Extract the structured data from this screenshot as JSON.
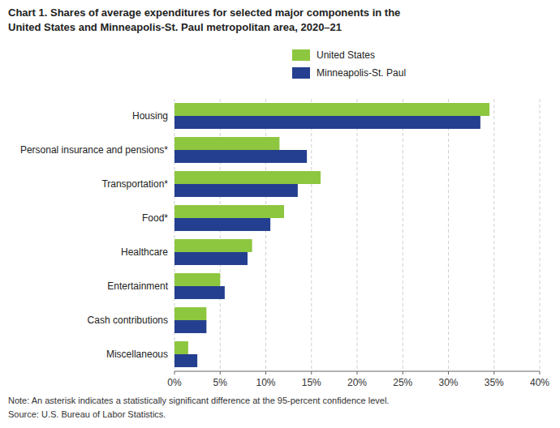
{
  "chart_data": {
    "type": "bar",
    "orientation": "horizontal",
    "title": "Chart 1. Shares of average expenditures for selected major components in the",
    "subtitle": "United States and Minneapolis-St. Paul metropolitan area, 2020–21",
    "categories": [
      "Miscellaneous",
      "Cash contributions",
      "Entertainment",
      "Healthcare",
      "Food*",
      "Transportation*",
      "Personal insurance and pensions*",
      "Housing"
    ],
    "series": [
      {
        "name": "United States",
        "color": "#8DC63F",
        "values": [
          1.5,
          3.5,
          5.0,
          8.5,
          12.0,
          16.0,
          11.5,
          34.5
        ]
      },
      {
        "name": "Minneapolis-St. Paul",
        "color": "#243F8F",
        "values": [
          2.5,
          3.5,
          5.5,
          8.0,
          10.5,
          13.5,
          14.5,
          33.5
        ]
      }
    ],
    "xlim": [
      0,
      40
    ],
    "xticks": [
      {
        "value": 0,
        "label": "0%"
      },
      {
        "value": 5,
        "label": "5%"
      },
      {
        "value": 10,
        "label": "10%"
      },
      {
        "value": 15,
        "label": "15%"
      },
      {
        "value": 20,
        "label": "20%"
      },
      {
        "value": 25,
        "label": "25%"
      },
      {
        "value": 30,
        "label": "30%"
      },
      {
        "value": 35,
        "label": "35%"
      },
      {
        "value": 40,
        "label": "40%"
      }
    ],
    "grid": true,
    "legend": "top",
    "annotations": [
      "Note: An asterisk indicates a statistically significant difference at the 95-percent confidence level.",
      "Source: U.S. Bureau of Labor Statistics."
    ]
  }
}
